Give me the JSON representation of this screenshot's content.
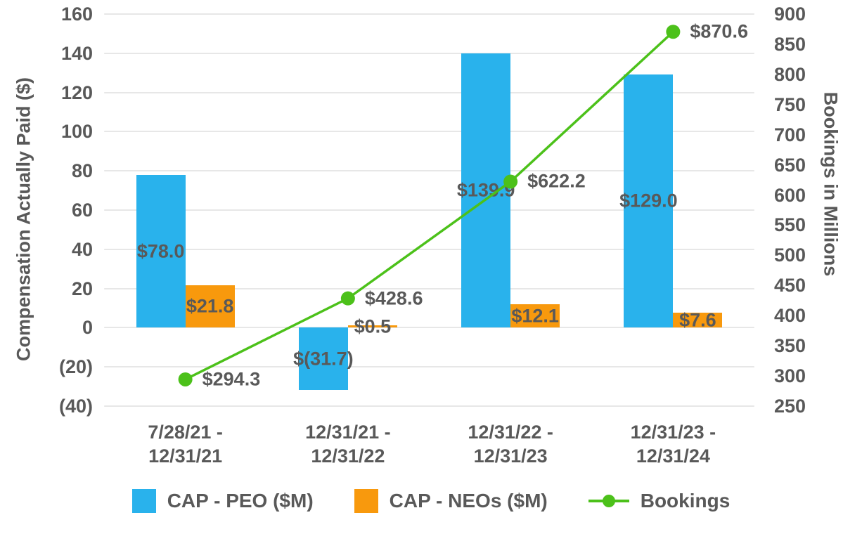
{
  "chart_data": {
    "type": "combo-bar-line",
    "categories": [
      "7/28/21 -\n12/31/21",
      "12/31/21 -\n12/31/22",
      "12/31/22 -\n12/31/23",
      "12/31/23 -\n12/31/24"
    ],
    "series": [
      {
        "name": "CAP - PEO ($M)",
        "type": "bar",
        "axis": "left",
        "color": "#29B2EC",
        "values": [
          78.0,
          -31.7,
          139.9,
          129.0
        ],
        "labels": [
          "$78.0",
          "$(31.7)",
          "$139.9",
          "$129.0"
        ]
      },
      {
        "name": "CAP - NEOs ($M)",
        "type": "bar",
        "axis": "left",
        "color": "#F8990D",
        "values": [
          21.8,
          0.5,
          12.1,
          7.6
        ],
        "labels": [
          "$21.8",
          "$0.5",
          "$12.1",
          "$7.6"
        ]
      },
      {
        "name": "Bookings",
        "type": "line",
        "axis": "right",
        "color": "#4CC11A",
        "values": [
          294.3,
          428.6,
          622.2,
          870.6
        ],
        "labels": [
          "$294.3",
          "$428.6",
          "$622.2",
          "$870.6"
        ]
      }
    ],
    "left_axis": {
      "title": "Compensation Actually Paid ($)",
      "min": -40,
      "max": 160,
      "step": 20,
      "ticks": [
        "160",
        "140",
        "120",
        "100",
        "80",
        "60",
        "40",
        "20",
        "0",
        "(20)",
        "(40)"
      ]
    },
    "right_axis": {
      "title": "Bookings in Millions",
      "min": 250,
      "max": 900,
      "step": 50,
      "ticks": [
        "900",
        "850",
        "800",
        "750",
        "700",
        "650",
        "600",
        "550",
        "500",
        "450",
        "400",
        "350",
        "300",
        "250"
      ]
    },
    "legend_position": "bottom",
    "grid": true
  },
  "colors": {
    "text": "#595959",
    "grid": "#E7E7E7",
    "background": "#FFFFFF"
  }
}
